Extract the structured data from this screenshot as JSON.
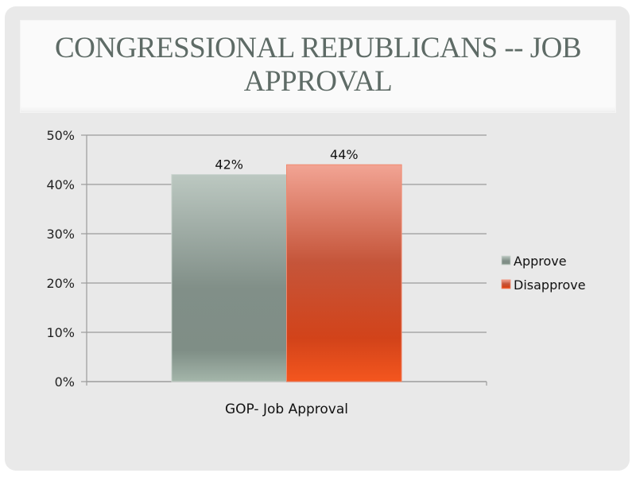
{
  "slide": {
    "title": "CONGRESSIONAL REPUBLICANS -- JOB APPROVAL"
  },
  "chart_data": {
    "type": "bar",
    "title": "CONGRESSIONAL REPUBLICANS -- JOB APPROVAL",
    "xlabel": "",
    "ylabel": "",
    "categories": [
      "GOP- Job Approval"
    ],
    "series": [
      {
        "name": "Approve",
        "values": [
          42
        ],
        "label": "42%",
        "color": "#8a9a92"
      },
      {
        "name": "Disapprove",
        "values": [
          44
        ],
        "label": "44%",
        "color": "#d2492a"
      }
    ],
    "ylim": [
      0,
      50
    ],
    "yticks": [
      0,
      10,
      20,
      30,
      40,
      50
    ],
    "ytick_labels": [
      "0%",
      "10%",
      "20%",
      "30%",
      "40%",
      "50%"
    ],
    "grid": true,
    "legend": "right"
  }
}
